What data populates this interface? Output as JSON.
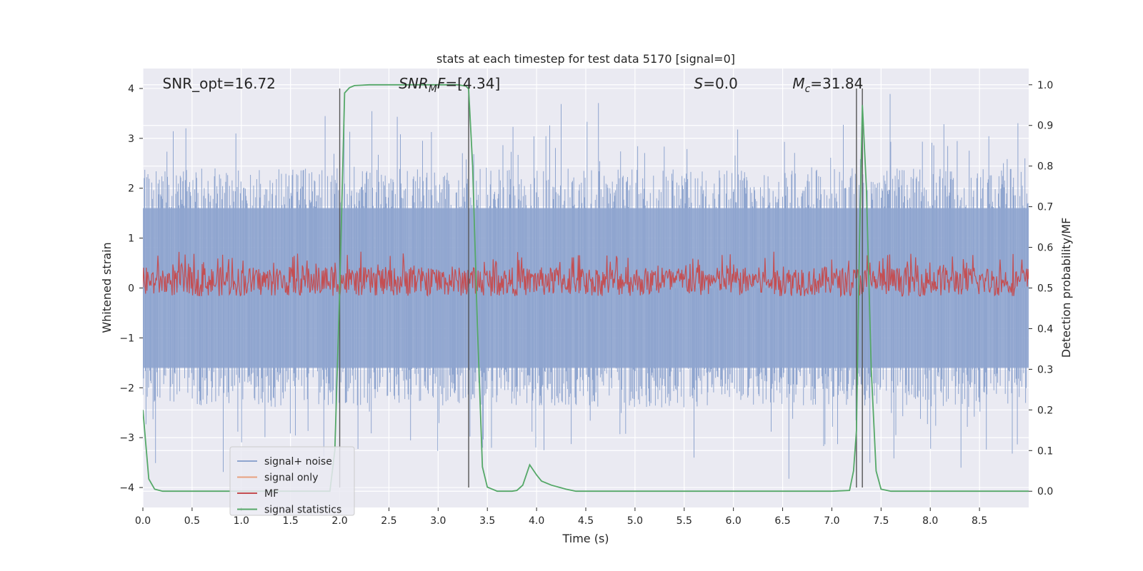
{
  "chart_data": {
    "type": "line",
    "title": "stats at each timestep for test data 5170 [signal=0]",
    "xlabel": "Time (s)",
    "ylabel_left": "Whitened strain",
    "ylabel_right": "Detection probability/MF",
    "xlim": [
      0.0,
      9.0
    ],
    "ylim_left": [
      -4.4,
      4.4
    ],
    "ylim_right": [
      -0.04,
      1.04
    ],
    "x_ticks": [
      0.0,
      0.5,
      1.0,
      1.5,
      2.0,
      2.5,
      3.0,
      3.5,
      4.0,
      4.5,
      5.0,
      5.5,
      6.0,
      6.5,
      7.0,
      7.5,
      8.0,
      8.5
    ],
    "x_tick_labels": [
      "0.0",
      "0.5",
      "1.0",
      "1.5",
      "2.0",
      "2.5",
      "3.0",
      "3.5",
      "4.0",
      "4.5",
      "5.0",
      "5.5",
      "6.0",
      "6.5",
      "7.0",
      "7.5",
      "8.0",
      "8.5"
    ],
    "y_left_ticks": [
      -4,
      -3,
      -2,
      -1,
      0,
      1,
      2,
      3,
      4
    ],
    "y_left_tick_labels": [
      "−4",
      "−3",
      "−2",
      "−1",
      "0",
      "1",
      "2",
      "3",
      "4"
    ],
    "y_right_ticks": [
      0.0,
      0.1,
      0.2,
      0.3,
      0.4,
      0.5,
      0.6,
      0.7,
      0.8,
      0.9,
      1.0
    ],
    "y_right_tick_labels": [
      "0.0",
      "0.1",
      "0.2",
      "0.3",
      "0.4",
      "0.5",
      "0.6",
      "0.7",
      "0.8",
      "0.9",
      "1.0"
    ],
    "grid": true,
    "legend_position": "lower-left",
    "annotations": [
      {
        "key": "snr-opt",
        "x": 0.2,
        "text": "SNR_opt=16.72"
      },
      {
        "key": "snr-mf",
        "x": 2.6,
        "text": "SNR_MF=[4.34]",
        "math": "mf"
      },
      {
        "key": "s-value",
        "x": 5.6,
        "text": "S=0.0",
        "math": "s"
      },
      {
        "key": "chirp-mass",
        "x": 6.6,
        "text": "M_c=31.84",
        "math": "mc"
      }
    ],
    "vertical_lines_x": [
      2.0,
      3.31,
      7.25,
      7.31
    ],
    "series": [
      {
        "name": "signal+ noise",
        "color": "#8fa5cf",
        "axis": "left",
        "render": "noise",
        "band_abs_typical": 1.6,
        "spike_max": 4.0,
        "x_range": [
          0.0,
          9.0
        ]
      },
      {
        "name": "signal only",
        "color": "#e8a07f",
        "axis": "left",
        "render": "none"
      },
      {
        "name": "MF",
        "color": "#c44e52",
        "axis": "right",
        "render": "noise",
        "mean": 0.52,
        "range": [
          0.48,
          0.59
        ],
        "spike": {
          "x": 7.0,
          "y": 0.57
        }
      },
      {
        "name": "signal statistics",
        "color": "#55a868",
        "axis": "right",
        "render": "line",
        "x": [
          0.0,
          0.06,
          0.12,
          0.2,
          0.3,
          0.45,
          0.6,
          0.8,
          1.0,
          1.2,
          1.4,
          1.6,
          1.8,
          1.9,
          1.95,
          2.0,
          2.05,
          2.1,
          2.15,
          2.3,
          2.6,
          3.0,
          3.2,
          3.28,
          3.31,
          3.35,
          3.4,
          3.45,
          3.5,
          3.6,
          3.75,
          3.8,
          3.86,
          3.93,
          4.0,
          4.05,
          4.15,
          4.3,
          4.4,
          4.6,
          5.0,
          6.0,
          7.0,
          7.18,
          7.22,
          7.25,
          7.28,
          7.31,
          7.35,
          7.4,
          7.45,
          7.5,
          7.6,
          8.0,
          8.5,
          9.0
        ],
        "y": [
          0.2,
          0.03,
          0.005,
          0.0,
          0.0,
          0.0,
          0.0,
          0.0,
          0.0,
          0.0,
          0.0,
          0.0,
          0.0,
          0.0,
          0.1,
          0.5,
          0.98,
          0.993,
          0.998,
          1.0,
          1.0,
          1.0,
          1.0,
          0.997,
          0.99,
          0.8,
          0.4,
          0.06,
          0.01,
          0.0,
          0.0,
          0.002,
          0.015,
          0.065,
          0.04,
          0.025,
          0.015,
          0.005,
          0.0,
          0.0,
          0.0,
          0.0,
          0.0,
          0.002,
          0.05,
          0.15,
          0.6,
          0.95,
          0.75,
          0.3,
          0.05,
          0.005,
          0.0,
          0.0,
          0.0,
          0.0
        ]
      }
    ]
  }
}
